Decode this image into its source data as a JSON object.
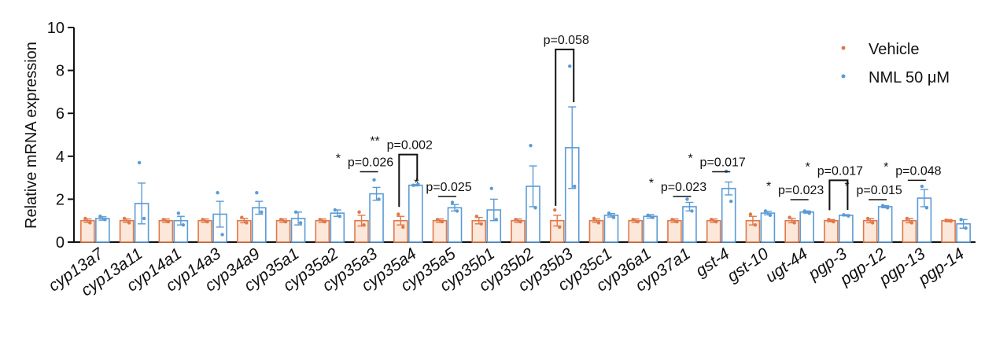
{
  "chart_data": {
    "type": "bar",
    "ylabel": "Relative mRNA expression",
    "ylim": [
      0,
      10
    ],
    "yticks": [
      "0",
      "2",
      "4",
      "6",
      "8",
      "10"
    ],
    "legend_position": "top-right",
    "categories": [
      "cyp13a7",
      "cyp13a11",
      "cyp14a1",
      "cyp14a3",
      "cyp34a9",
      "cyp35a1",
      "cyp35a2",
      "cyp35a3",
      "cyp35a4",
      "cyp35a5",
      "cyp35b1",
      "cyp35b2",
      "cyp35b3",
      "cyp35c1",
      "cyp36a1",
      "cyp37a1",
      "gst-4",
      "gst-10",
      "ugt-44",
      "pgp-3",
      "pgp-12",
      "pgp-13",
      "pgp-14"
    ],
    "series": [
      {
        "name": "Vehicle",
        "color": "#e0784a",
        "fill": "#fce8da",
        "values": [
          1.0,
          1.0,
          1.0,
          1.0,
          1.0,
          1.0,
          1.0,
          1.0,
          1.0,
          1.0,
          1.0,
          1.0,
          1.0,
          1.0,
          1.0,
          1.0,
          1.0,
          1.0,
          1.0,
          1.0,
          1.0,
          1.0,
          1.0
        ],
        "errors": [
          0.08,
          0.08,
          0.08,
          0.08,
          0.1,
          0.08,
          0.08,
          0.25,
          0.2,
          0.08,
          0.15,
          0.08,
          0.25,
          0.08,
          0.08,
          0.08,
          0.08,
          0.2,
          0.1,
          0.05,
          0.1,
          0.1,
          0.05
        ],
        "points": [
          [
            1.1,
            0.9
          ],
          [
            1.1,
            0.9
          ],
          [
            1.05,
            0.95
          ],
          [
            1.05,
            0.95
          ],
          [
            1.15,
            0.9
          ],
          [
            1.05,
            0.95
          ],
          [
            1.05,
            0.95
          ],
          [
            1.4,
            0.8
          ],
          [
            1.3,
            0.7
          ],
          [
            1.05,
            0.95
          ],
          [
            1.2,
            0.85
          ],
          [
            1.05,
            0.95
          ],
          [
            1.5,
            0.7
          ],
          [
            1.1,
            0.9
          ],
          [
            1.05,
            0.95
          ],
          [
            1.05,
            0.95
          ],
          [
            1.05,
            0.95
          ],
          [
            1.3,
            0.8
          ],
          [
            1.15,
            0.9
          ],
          [
            1.05,
            0.95
          ],
          [
            1.1,
            0.9
          ],
          [
            1.1,
            0.9
          ],
          [
            1.02,
            0.98
          ]
        ]
      },
      {
        "name": "NML 50 μM",
        "color": "#5b9bd5",
        "fill": "#ffffff",
        "values": [
          1.1,
          1.8,
          1.0,
          1.3,
          1.6,
          1.1,
          1.35,
          2.25,
          2.65,
          1.6,
          1.5,
          2.6,
          4.4,
          1.25,
          1.2,
          1.65,
          2.5,
          1.35,
          1.4,
          1.25,
          1.65,
          2.05,
          0.85
        ],
        "errors": [
          0.08,
          0.95,
          0.2,
          0.6,
          0.3,
          0.3,
          0.15,
          0.3,
          0.03,
          0.15,
          0.5,
          0.95,
          1.9,
          0.08,
          0.08,
          0.2,
          0.3,
          0.08,
          0.05,
          0.03,
          0.05,
          0.4,
          0.2
        ],
        "points": [
          [
            1.2,
            1.05
          ],
          [
            3.7,
            1.1
          ],
          [
            1.35,
            0.8
          ],
          [
            2.3,
            0.35
          ],
          [
            2.3,
            1.4
          ],
          [
            1.4,
            0.9
          ],
          [
            1.5,
            1.2
          ],
          [
            2.9,
            2.0
          ],
          [
            2.65,
            2.7
          ],
          [
            1.85,
            1.45
          ],
          [
            2.5,
            1.05
          ],
          [
            4.5,
            1.6
          ],
          [
            8.2,
            2.6
          ],
          [
            1.35,
            1.15
          ],
          [
            1.25,
            1.15
          ],
          [
            2.0,
            1.45
          ],
          [
            3.3,
            1.9
          ],
          [
            1.45,
            1.25
          ],
          [
            1.45,
            1.35
          ],
          [
            1.27,
            1.22
          ],
          [
            1.7,
            1.6
          ],
          [
            2.6,
            1.6
          ],
          [
            1.05,
            0.65
          ]
        ]
      }
    ],
    "annotations": [
      {
        "text": "p=0.058",
        "index": 12,
        "y": 9.2,
        "bracket": true,
        "stars": ""
      },
      {
        "text": "p=0.002",
        "index": 8,
        "y": 4.3,
        "bracket": true,
        "stars": "**"
      },
      {
        "text": "p=0.026",
        "index": 7,
        "y": 3.5,
        "bracket": false,
        "stars": "*"
      },
      {
        "text": "p=0.025",
        "index": 9,
        "y": 2.35,
        "bracket": false,
        "stars": "*"
      },
      {
        "text": "p=0.023",
        "index": 15,
        "y": 2.35,
        "bracket": false,
        "stars": "*"
      },
      {
        "text": "p=0.017",
        "index": 16,
        "y": 3.5,
        "bracket": false,
        "stars": "*"
      },
      {
        "text": "p=0.023",
        "index": 18,
        "y": 2.2,
        "bracket": false,
        "stars": "*"
      },
      {
        "text": "p=0.017",
        "index": 19,
        "y": 3.1,
        "bracket": true,
        "stars": "*"
      },
      {
        "text": "p=0.015",
        "index": 20,
        "y": 2.2,
        "bracket": false,
        "stars": "*"
      },
      {
        "text": "p=0.048",
        "index": 21,
        "y": 3.1,
        "bracket": false,
        "stars": "*"
      }
    ]
  }
}
